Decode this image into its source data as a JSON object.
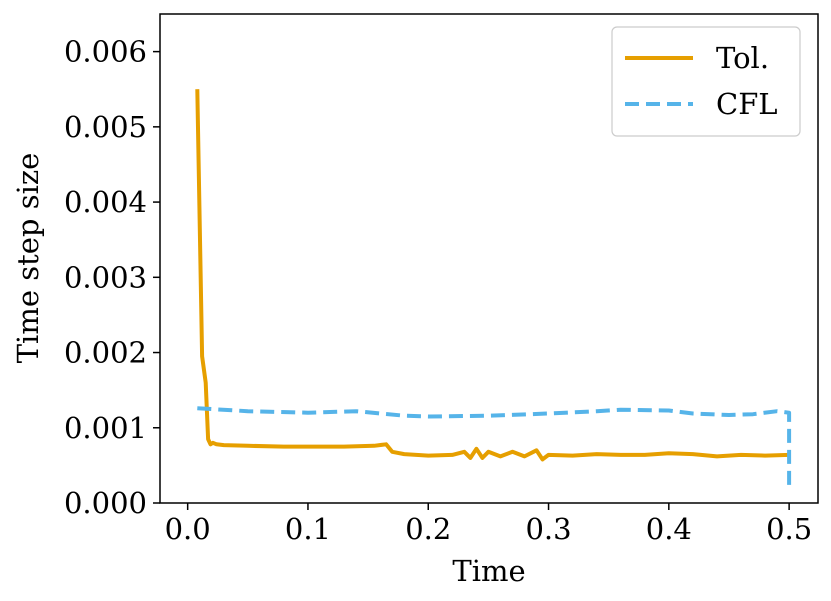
{
  "chart_data": {
    "type": "line",
    "xlabel": "Time",
    "ylabel": "Time step size",
    "xlim": [
      -0.023,
      0.524
    ],
    "ylim": [
      0,
      0.0065
    ],
    "xticks": [
      0.0,
      0.1,
      0.2,
      0.3,
      0.4,
      0.5
    ],
    "xtick_labels": [
      "0.0",
      "0.1",
      "0.2",
      "0.3",
      "0.4",
      "0.5"
    ],
    "yticks": [
      0,
      0.001,
      0.002,
      0.003,
      0.004,
      0.005,
      0.006
    ],
    "ytick_labels": [
      "0.000",
      "0.001",
      "0.002",
      "0.003",
      "0.004",
      "0.005",
      "0.006"
    ],
    "grid": false,
    "legend_position": "top-right",
    "series": [
      {
        "name": "Tol.",
        "color": "#E69F00",
        "style": "solid",
        "x": [
          0.008,
          0.012,
          0.015,
          0.017,
          0.019,
          0.021,
          0.024,
          0.03,
          0.05,
          0.08,
          0.1,
          0.13,
          0.155,
          0.165,
          0.17,
          0.18,
          0.2,
          0.22,
          0.23,
          0.235,
          0.24,
          0.245,
          0.25,
          0.26,
          0.27,
          0.28,
          0.29,
          0.295,
          0.3,
          0.32,
          0.34,
          0.36,
          0.38,
          0.4,
          0.42,
          0.44,
          0.46,
          0.48,
          0.5
        ],
        "y": [
          0.0055,
          0.00195,
          0.0016,
          0.00085,
          0.00078,
          0.0008,
          0.00078,
          0.00077,
          0.00076,
          0.00075,
          0.00075,
          0.00075,
          0.00076,
          0.00078,
          0.00068,
          0.00065,
          0.00063,
          0.00064,
          0.00068,
          0.0006,
          0.00072,
          0.0006,
          0.00068,
          0.00062,
          0.00068,
          0.00062,
          0.0007,
          0.00058,
          0.00064,
          0.00063,
          0.00065,
          0.00064,
          0.00064,
          0.00066,
          0.00065,
          0.00062,
          0.00064,
          0.00063,
          0.00064
        ]
      },
      {
        "name": "CFL",
        "color": "#56B4E9",
        "style": "dashed",
        "x": [
          0.008,
          0.05,
          0.1,
          0.14,
          0.18,
          0.2,
          0.25,
          0.3,
          0.34,
          0.36,
          0.4,
          0.42,
          0.45,
          0.47,
          0.49,
          0.5,
          0.5
        ],
        "y": [
          0.00126,
          0.00122,
          0.0012,
          0.00122,
          0.00116,
          0.00115,
          0.00116,
          0.00119,
          0.00122,
          0.00124,
          0.00123,
          0.00119,
          0.00117,
          0.00118,
          0.00122,
          0.0012,
          0.0002
        ]
      }
    ]
  }
}
